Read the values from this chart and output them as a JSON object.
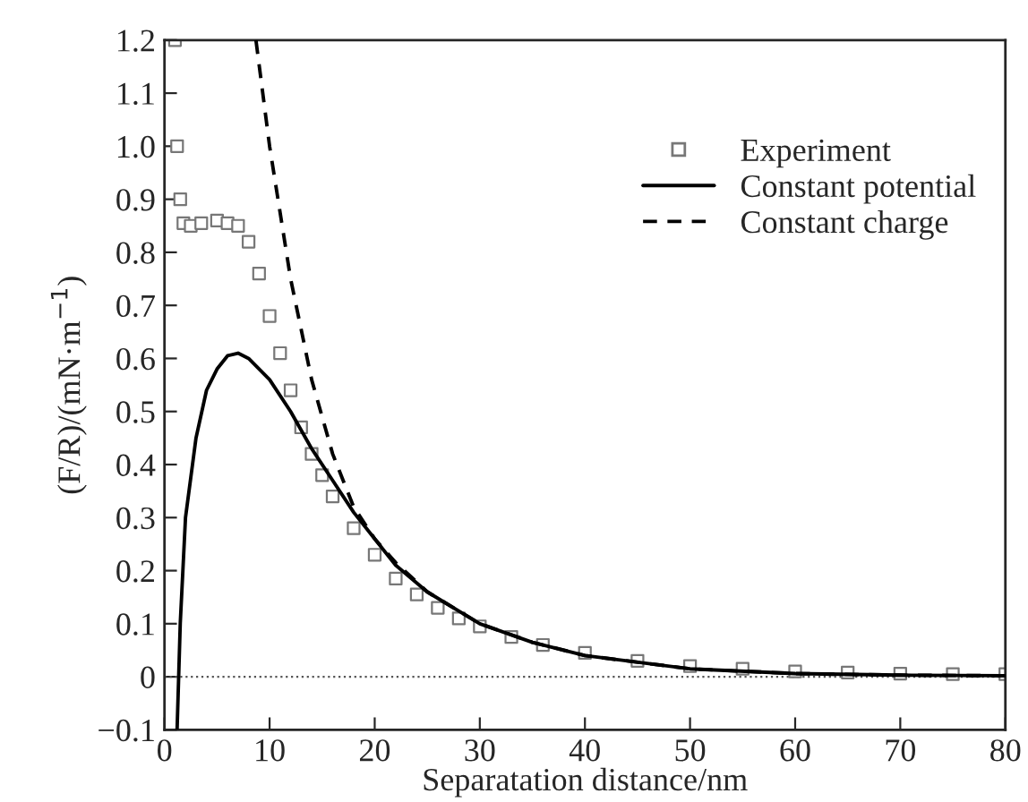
{
  "chart_data": {
    "type": "line",
    "xlabel": "Separatation distance/nm",
    "ylabel": "(F/R)/(mN·m$^{−1}$)",
    "xlim": [
      0,
      80
    ],
    "ylim": [
      -0.1,
      1.2
    ],
    "xticks": [
      0,
      10,
      20,
      30,
      40,
      50,
      60,
      70,
      80
    ],
    "yticks": [
      {
        "value": -0.1,
        "label": "−0.1"
      },
      0,
      0.1,
      0.2,
      0.3,
      0.4,
      0.5,
      0.6,
      0.7,
      0.8,
      0.9,
      {
        "value": 1.0,
        "label": "1.0"
      },
      1.1,
      1.2
    ],
    "grid": false,
    "legend": "top right",
    "ref_lines": [
      {
        "axis": "y",
        "value": 0,
        "color": "#555555",
        "line_style": "dotted"
      }
    ],
    "series": [
      {
        "name": "Experiment",
        "type": "scatter",
        "marker": "square",
        "color": "#777777",
        "x": [
          1.0,
          1.2,
          1.5,
          1.8,
          2.5,
          3.5,
          5,
          6,
          7,
          8,
          9,
          10,
          11,
          12,
          13,
          14,
          15,
          16,
          18,
          20,
          22,
          24,
          26,
          28,
          30,
          33,
          36,
          40,
          45,
          50,
          55,
          60,
          65,
          70,
          75,
          80
        ],
        "values": [
          1.2,
          1.0,
          0.9,
          0.855,
          0.85,
          0.855,
          0.86,
          0.855,
          0.85,
          0.82,
          0.76,
          0.68,
          0.61,
          0.54,
          0.47,
          0.42,
          0.38,
          0.34,
          0.28,
          0.23,
          0.185,
          0.155,
          0.13,
          0.11,
          0.095,
          0.075,
          0.06,
          0.045,
          0.03,
          0.02,
          0.015,
          0.01,
          0.008,
          0.006,
          0.005,
          0.005
        ]
      },
      {
        "name": "Constant potential",
        "line_style": "solid",
        "color": "#000000",
        "x": [
          1.2,
          1.5,
          2,
          3,
          4,
          5,
          6,
          7,
          8,
          10,
          12,
          14,
          16,
          18,
          20,
          22,
          25,
          30,
          35,
          40,
          50,
          60,
          70,
          80
        ],
        "values": [
          -0.1,
          0.1,
          0.3,
          0.45,
          0.54,
          0.58,
          0.605,
          0.61,
          0.6,
          0.56,
          0.5,
          0.43,
          0.37,
          0.31,
          0.26,
          0.21,
          0.16,
          0.1,
          0.065,
          0.04,
          0.015,
          0.006,
          0.003,
          0.002
        ]
      },
      {
        "name": "Constant charge",
        "line_style": "dashed",
        "color": "#000000",
        "x": [
          8.7,
          10,
          12,
          14,
          16,
          18,
          20,
          22,
          25,
          30,
          35,
          40,
          50,
          60,
          70,
          80
        ],
        "values": [
          1.2,
          1.0,
          0.75,
          0.56,
          0.42,
          0.32,
          0.26,
          0.215,
          0.16,
          0.1,
          0.065,
          0.04,
          0.015,
          0.006,
          0.003,
          0.002
        ]
      }
    ]
  }
}
